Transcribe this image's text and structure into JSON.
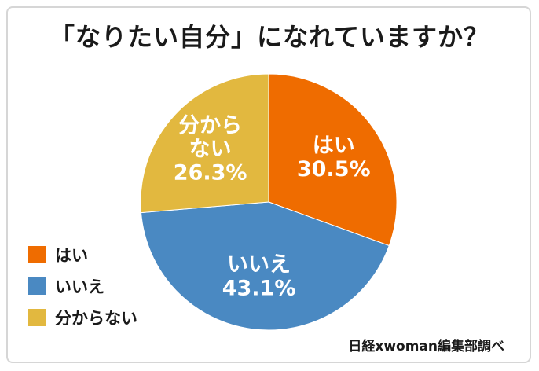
{
  "chart_data": {
    "type": "pie",
    "title": "「なりたい自分」になれていますか？",
    "categories": [
      "はい",
      "いいえ",
      "分からない"
    ],
    "values": [
      30.5,
      43.1,
      26.3
    ],
    "value_labels": [
      "30.5%",
      "43.1%",
      "26.3%"
    ],
    "colors": [
      "#ef6c00",
      "#4a89c2",
      "#e2b83f"
    ],
    "start_angle_deg": 0,
    "direction": "clockwise",
    "legend_position": "left",
    "source": "日経xwoman編集部調べ",
    "slice_label_lines": [
      [
        "はい"
      ],
      [
        "いいえ"
      ],
      [
        "分から",
        "ない"
      ]
    ]
  }
}
